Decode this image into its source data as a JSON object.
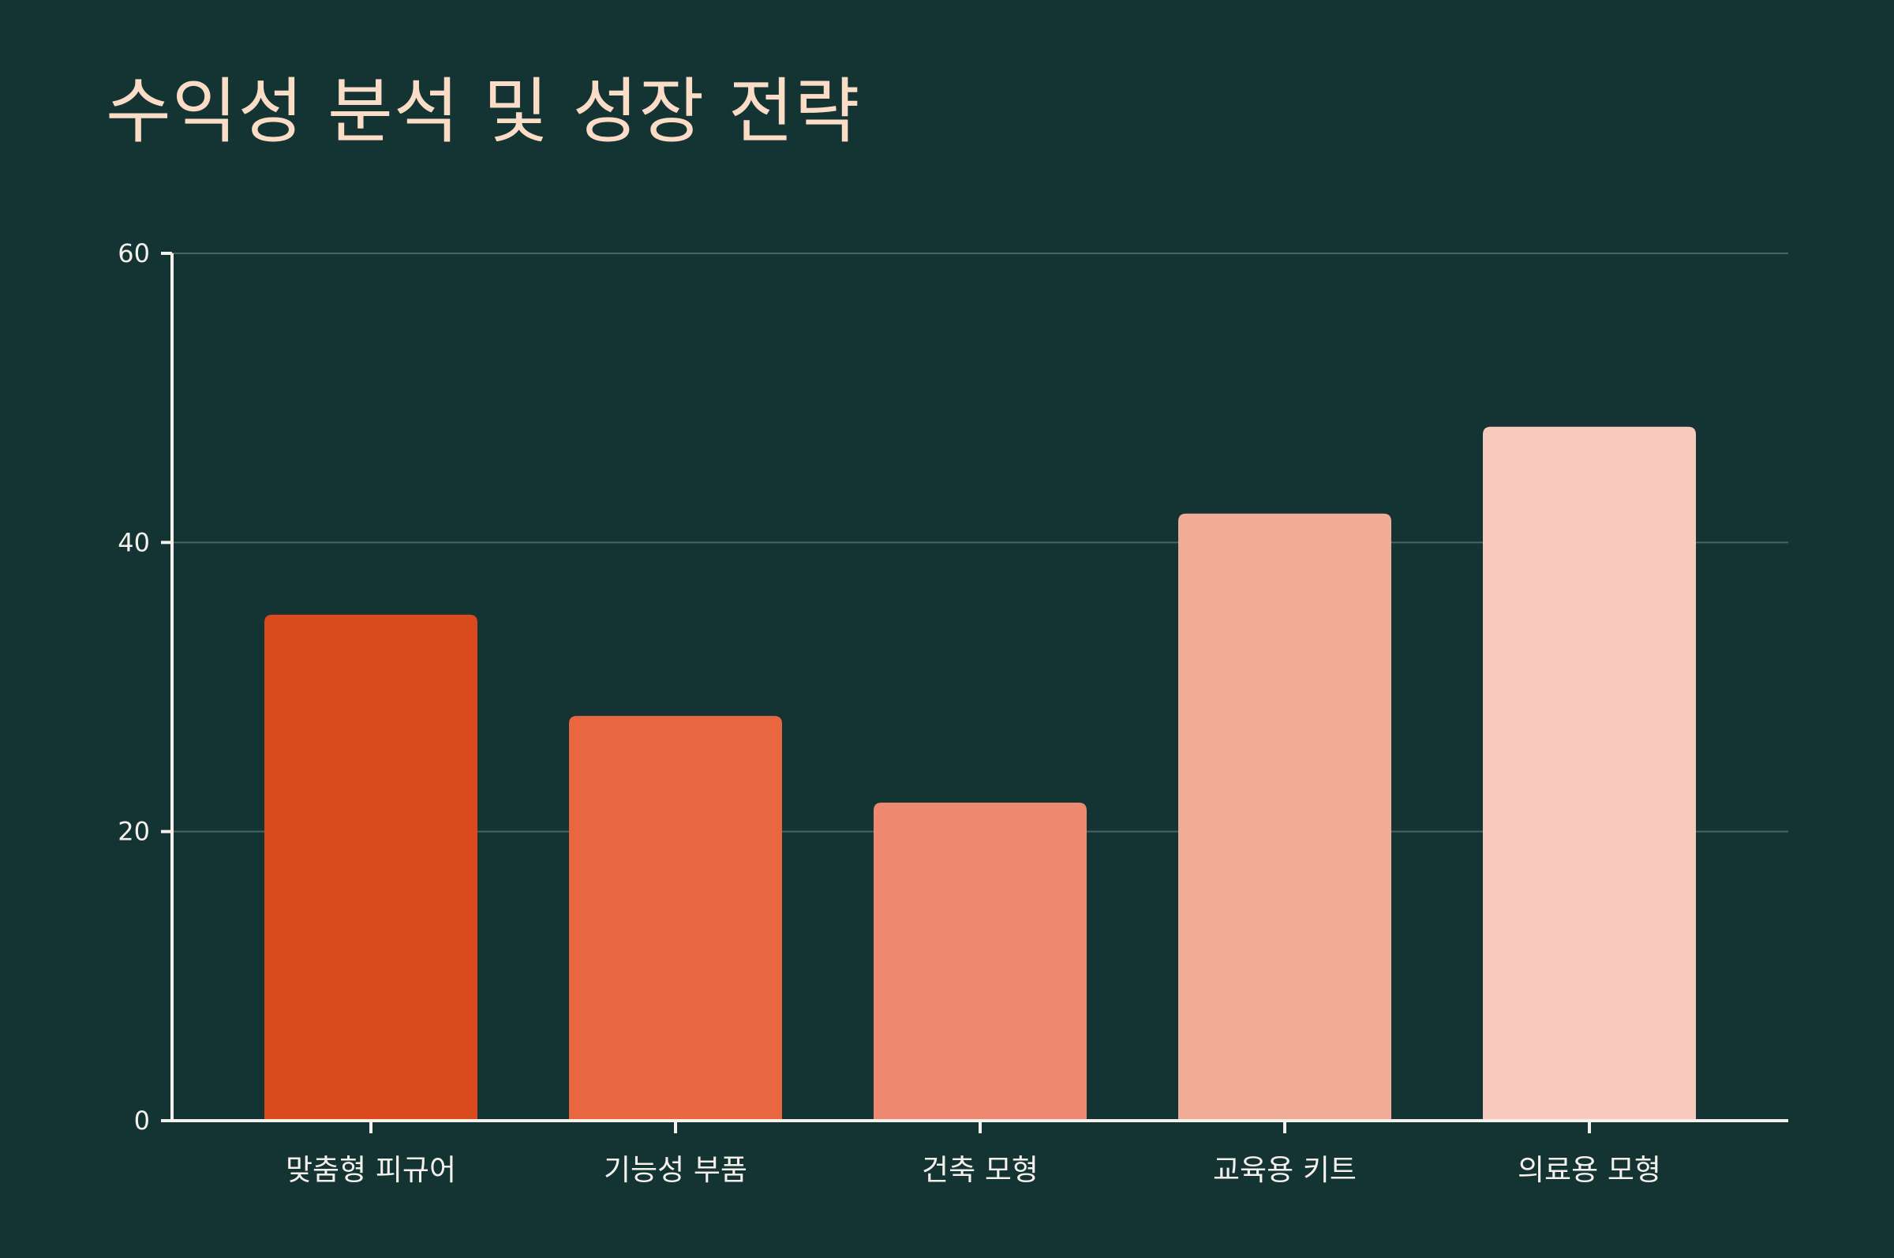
{
  "chart_data": {
    "type": "bar",
    "title": "수익성 분석 및 성장 전략",
    "xlabel": "",
    "ylabel": "",
    "categories": [
      "맞춤형 피규어",
      "기능성 부품",
      "건축 모형",
      "교육용 키트",
      "의료용 모형"
    ],
    "values": [
      35,
      28,
      22,
      42,
      48
    ],
    "colors": [
      "#DA4A1C",
      "#E86741",
      "#EE8870",
      "#F1AC98",
      "#F8CABE"
    ],
    "ylim": [
      0,
      60
    ],
    "yticks": [
      0,
      20,
      40,
      60
    ],
    "grid": true,
    "legend": "none",
    "theme": {
      "background": "#143333",
      "title_color": "#FBDCC6",
      "axis_color": "#F4F1EC",
      "grid_color": "#4A6462"
    }
  }
}
